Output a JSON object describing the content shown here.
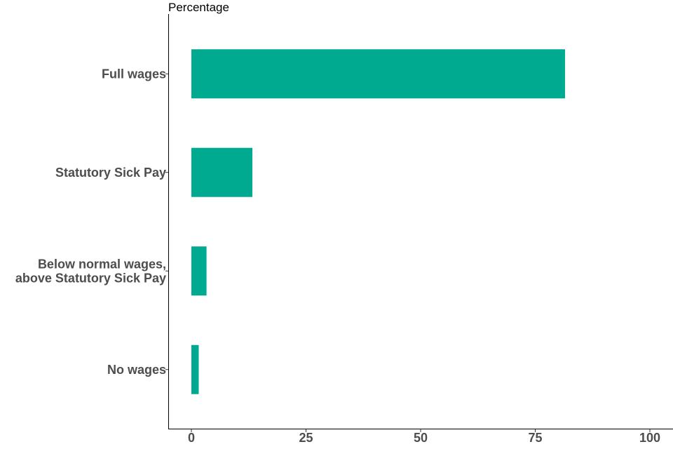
{
  "chart_data": {
    "type": "bar",
    "orientation": "horizontal",
    "categories": [
      [
        "Full wages"
      ],
      [
        "Statutory Sick Pay"
      ],
      [
        "Below normal wages,",
        "above Statutory Sick Pay"
      ],
      [
        "No wages"
      ]
    ],
    "values": [
      81.5,
      13.3,
      3.3,
      1.6
    ],
    "title": "",
    "xlabel": "",
    "ylabel": "Percentage",
    "xlim": [
      0,
      100
    ],
    "x_ticks": [
      0,
      25,
      50,
      75,
      100
    ],
    "grid": false,
    "legend": "none",
    "bar_color": "#00AA91"
  }
}
